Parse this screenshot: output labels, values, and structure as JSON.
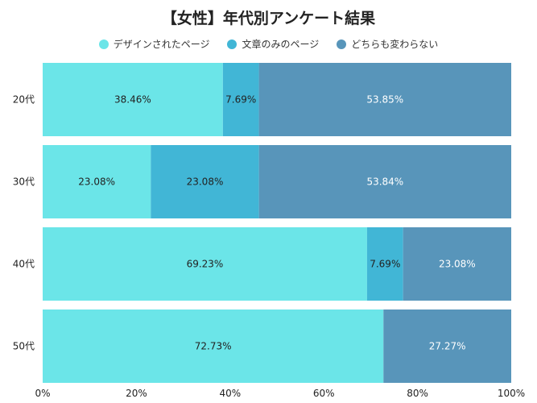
{
  "chart_data": {
    "type": "bar",
    "orientation": "horizontal",
    "stacked": true,
    "title": "【女性】年代別アンケート結果",
    "categories": [
      "20代",
      "30代",
      "40代",
      "50代"
    ],
    "series": [
      {
        "name": "デザインされたページ",
        "color": "#6be5e8",
        "label_color": "#222222",
        "values": [
          38.46,
          23.08,
          69.23,
          72.73
        ],
        "labels": [
          "38.46%",
          "23.08%",
          "69.23%",
          "72.73%"
        ]
      },
      {
        "name": "文章のみのページ",
        "color": "#41b6d6",
        "label_color": "#222222",
        "values": [
          7.69,
          23.08,
          7.69,
          0
        ],
        "labels": [
          "7.69%",
          "23.08%",
          "7.69%",
          ""
        ]
      },
      {
        "name": "どちらも変わらない",
        "color": "#5895ba",
        "label_color": "#ffffff",
        "values": [
          53.85,
          53.84,
          23.08,
          27.27
        ],
        "labels": [
          "53.85%",
          "53.84%",
          "23.08%",
          "27.27%"
        ]
      }
    ],
    "xlim": [
      0,
      100
    ],
    "xticks": [
      "0%",
      "20%",
      "40%",
      "60%",
      "80%",
      "100%"
    ],
    "legend_position": "top",
    "grid": false
  }
}
